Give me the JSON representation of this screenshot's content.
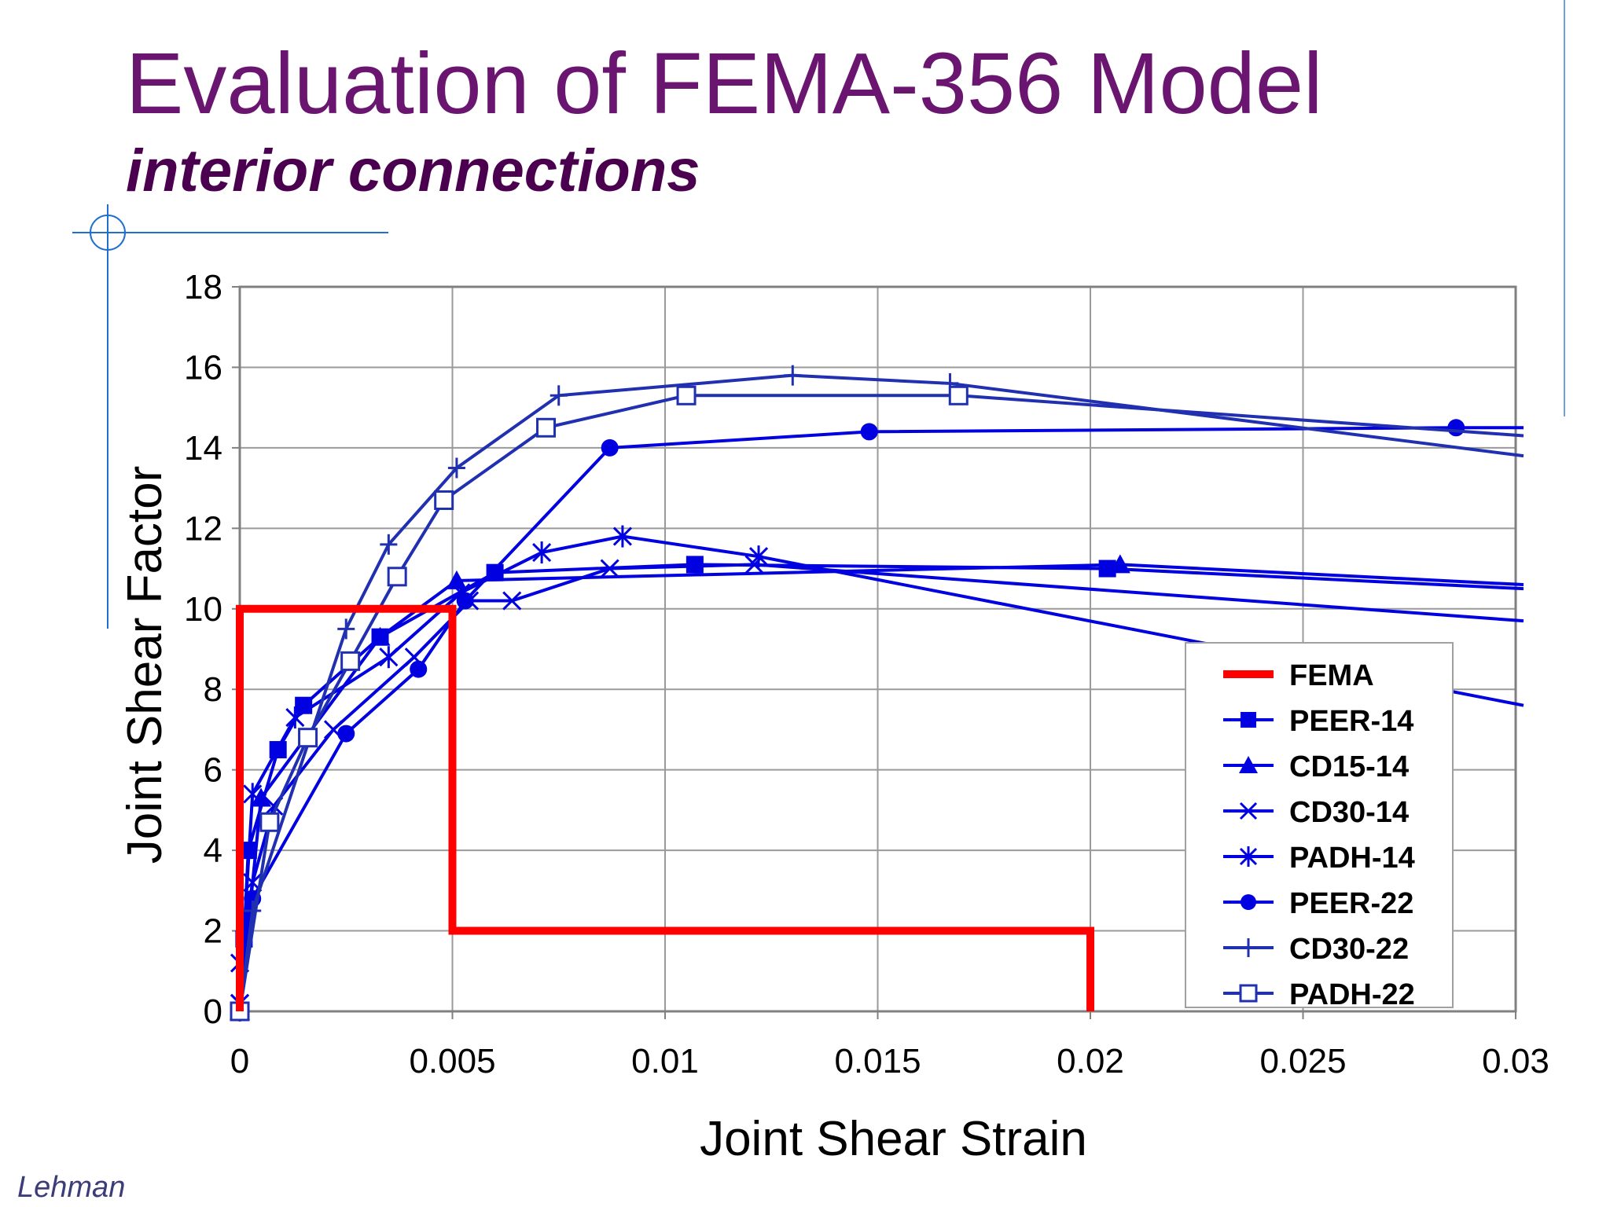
{
  "slide": {
    "title": "Evaluation of FEMA-356 Model",
    "subtitle": "interior connections",
    "author": "Lehman"
  },
  "chart_data": {
    "type": "line",
    "title": "",
    "xlabel": "Joint Shear Strain",
    "ylabel": "Joint Shear Factor",
    "xlim": [
      0,
      0.03
    ],
    "ylim": [
      0,
      18
    ],
    "xticks": [
      "0",
      "0.005",
      "0.01",
      "0.015",
      "0.02",
      "0.025",
      "0.03"
    ],
    "yticks": [
      "0",
      "2",
      "4",
      "6",
      "8",
      "10",
      "12",
      "14",
      "16",
      "18"
    ],
    "grid": true,
    "legend_position": "lower-right",
    "series": [
      {
        "name": "FEMA",
        "color": "#ff0000",
        "marker": "none",
        "points": [
          [
            0,
            0
          ],
          [
            0,
            10
          ],
          [
            0.005,
            10
          ],
          [
            0.005,
            2
          ],
          [
            0.02,
            2
          ],
          [
            0.02,
            0
          ]
        ]
      },
      {
        "name": "PEER-14",
        "color": "#0000e0",
        "marker": "square",
        "points": [
          [
            0,
            0
          ],
          [
            0.0001,
            1.8
          ],
          [
            0.0002,
            4.0
          ],
          [
            0.0009,
            6.5
          ],
          [
            0.0015,
            7.6
          ],
          [
            0.0033,
            9.3
          ],
          [
            0.006,
            10.9
          ],
          [
            0.0107,
            11.1
          ],
          [
            0.0204,
            11.0
          ],
          [
            0.0302,
            10.5
          ]
        ]
      },
      {
        "name": "CD15-14",
        "color": "#0000e0",
        "marker": "triangle",
        "points": [
          [
            0,
            0
          ],
          [
            0.0005,
            5.3
          ],
          [
            0.0033,
            9.3
          ],
          [
            0.0051,
            10.7
          ],
          [
            0.0207,
            11.1
          ],
          [
            0.0302,
            10.6
          ]
        ]
      },
      {
        "name": "CD30-14",
        "color": "#0000e0",
        "marker": "x",
        "points": [
          [
            0,
            0.2
          ],
          [
            0,
            1.2
          ],
          [
            0.0003,
            3.2
          ],
          [
            0.0008,
            5.1
          ],
          [
            0.0022,
            7.0
          ],
          [
            0.0041,
            8.8
          ],
          [
            0.0054,
            10.2
          ],
          [
            0.0064,
            10.2
          ],
          [
            0.0087,
            11.0
          ],
          [
            0.0121,
            11.1
          ],
          [
            0.0302,
            9.7
          ]
        ]
      },
      {
        "name": "PADH-14",
        "color": "#0000e0",
        "marker": "star",
        "points": [
          [
            0,
            0.2
          ],
          [
            0.0003,
            5.4
          ],
          [
            0.0013,
            7.3
          ],
          [
            0.0035,
            8.8
          ],
          [
            0.0052,
            10.4
          ],
          [
            0.0071,
            11.4
          ],
          [
            0.009,
            11.8
          ],
          [
            0.0122,
            11.3
          ],
          [
            0.0302,
            7.6
          ]
        ]
      },
      {
        "name": "PEER-22",
        "color": "#0000e0",
        "marker": "circle",
        "points": [
          [
            0,
            0
          ],
          [
            0.0003,
            2.8
          ],
          [
            0.0025,
            6.9
          ],
          [
            0.0042,
            8.5
          ],
          [
            0.0053,
            10.2
          ],
          [
            0.0087,
            14.0
          ],
          [
            0.0148,
            14.4
          ],
          [
            0.0286,
            14.5
          ],
          [
            0.0302,
            14.5
          ]
        ]
      },
      {
        "name": "CD30-22",
        "color": "#2030b0",
        "marker": "plus",
        "points": [
          [
            0,
            0
          ],
          [
            0.0003,
            2.5
          ],
          [
            0.0025,
            9.5
          ],
          [
            0.0035,
            11.6
          ],
          [
            0.0051,
            13.5
          ],
          [
            0.0075,
            15.3
          ],
          [
            0.013,
            15.8
          ],
          [
            0.0167,
            15.6
          ],
          [
            0.0302,
            13.8
          ]
        ]
      },
      {
        "name": "PADH-22",
        "color": "#2030b0",
        "marker": "square-open",
        "points": [
          [
            0,
            0
          ],
          [
            0.0007,
            4.7
          ],
          [
            0.0016,
            6.8
          ],
          [
            0.0026,
            8.7
          ],
          [
            0.0037,
            10.8
          ],
          [
            0.0048,
            12.7
          ],
          [
            0.0072,
            14.5
          ],
          [
            0.0105,
            15.3
          ],
          [
            0.0169,
            15.3
          ],
          [
            0.0302,
            14.3
          ]
        ]
      }
    ]
  }
}
